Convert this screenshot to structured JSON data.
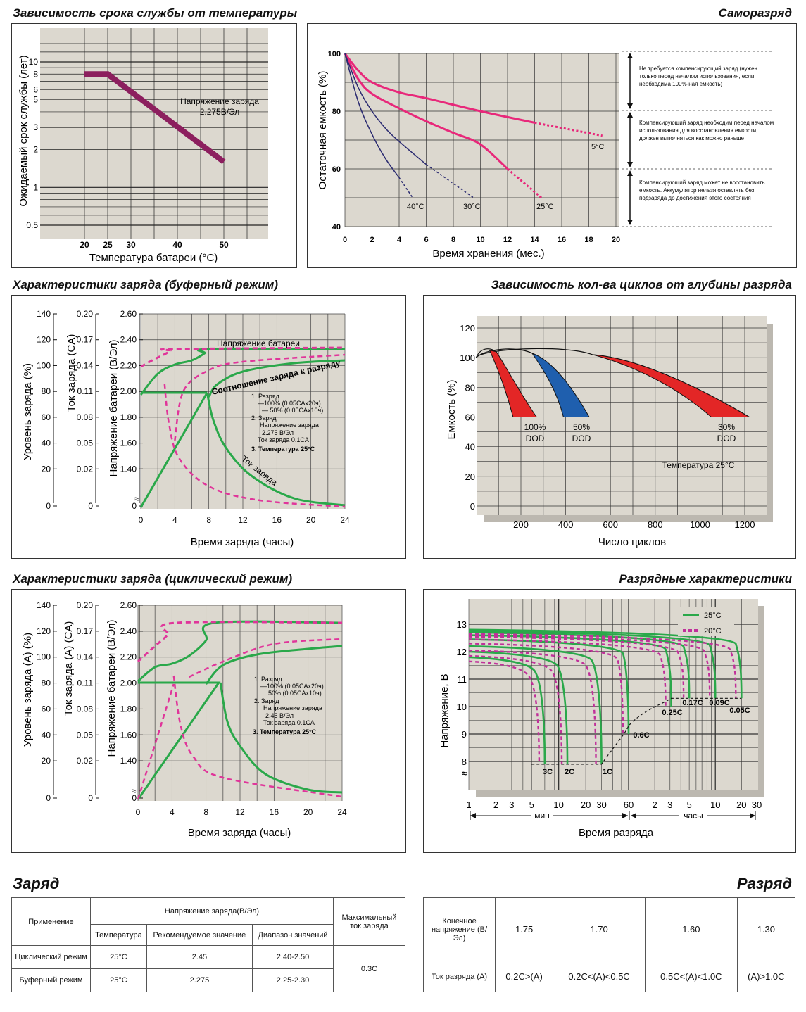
{
  "chart_data": [
    {
      "type": "line",
      "title": "Зависимость срока службы от температуры",
      "xlabel": "Температура батареи (°C)",
      "ylabel": "Ожидаемый срок службы (лет)",
      "xticks": [
        "20",
        "25",
        "30",
        "40",
        "50"
      ],
      "yticks": [
        "0.5",
        "1",
        "2",
        "3",
        "5",
        "6",
        "8",
        "10"
      ],
      "annotation": [
        "Напряжение заряда",
        "2.275В/Эл"
      ],
      "series": [
        {
          "x": [
            20,
            25,
            50
          ],
          "y": [
            8,
            8,
            1.6
          ]
        }
      ],
      "colors": {
        "line": "#8c1f5e",
        "plot": "#dcd8cf"
      }
    },
    {
      "type": "line",
      "title": "Саморазряд",
      "xlabel": "Время хранения (мес.)",
      "ylabel": "Остаточная емкость (%)",
      "xticks": [
        "0",
        "2",
        "4",
        "6",
        "8",
        "10",
        "12",
        "14",
        "16",
        "18",
        "20"
      ],
      "yticks": [
        "40",
        "60",
        "80",
        "100"
      ],
      "series": [
        {
          "name": "5°C",
          "x": [
            0,
            1,
            2,
            4,
            6,
            10,
            14,
            19
          ],
          "y": [
            100,
            94,
            90,
            86.5,
            84.5,
            80,
            76,
            71.5
          ]
        },
        {
          "name": "25°C",
          "x": [
            0,
            1,
            2,
            4,
            6,
            8,
            10,
            12,
            14.5
          ],
          "y": [
            100,
            91,
            86,
            81,
            76.5,
            72.5,
            68.5,
            60,
            50
          ]
        },
        {
          "name": "30°C",
          "x": [
            0,
            1,
            2,
            3,
            4,
            6,
            9.5
          ],
          "y": [
            100,
            88,
            80,
            74,
            69.5,
            61.5,
            50
          ]
        },
        {
          "name": "40°C",
          "x": [
            0,
            1,
            2,
            3,
            4,
            5
          ],
          "y": [
            100,
            83,
            72,
            63.5,
            57,
            50
          ]
        }
      ],
      "notes": [
        "Не требуется компенсирующий заряд (нужен только перед началом использования, если необходима 100%-ная емкость)",
        "Компенсирующий заряд необходим перед началом использования для восстановления емкости, должен выполняться как можно раньше",
        "Компенсирующий заряд может не восстановить емкость. Аккумулятор нельзя оставлять без подзаряда до достижения этого состояния"
      ],
      "colors": {
        "line": "#e8287a",
        "dark": "#2a2a70",
        "plot": "#dcd8cf"
      }
    },
    {
      "type": "line",
      "title": "Характеристики  заряда (буферный режим)",
      "xlabel": "Время заряда (часы)",
      "ylabel_left1": "Уровень заряда (%)",
      "ylabel_left2": "Ток заряда (CA)",
      "ylabel_left3": "Напряжение батареи (В/Эл)",
      "axis1": [
        "140",
        "120",
        "100",
        "80",
        "60",
        "40",
        "20",
        "0"
      ],
      "axis2": [
        "0.20",
        "0.17",
        "0.14",
        "0.11",
        "0.08",
        "0.05",
        "0.02",
        "0"
      ],
      "axis3": [
        "2.60",
        "2.40",
        "2.20",
        "2.00",
        "1.80",
        "1.60",
        "1.40",
        "0"
      ],
      "xticks": [
        "0",
        "4",
        "8",
        "12",
        "16",
        "20",
        "24"
      ],
      "labels": [
        "Напряжение батареи",
        "Соотношение заряда к разряду",
        "Ток заряда"
      ],
      "legend": [
        "1. Разряд",
        "—100% (0.05CAx20ч)",
        "— 50% (0.05CAx10ч)",
        "2. Заряд",
        "Напряжение заряда",
        "2.275 В/Эл",
        "Ток заряда 0.1CA",
        "3. Температура 25°C"
      ],
      "colors": {
        "solid": "#2aa84a",
        "dashed": "#e0359a",
        "plot": "#dcd8cf"
      }
    },
    {
      "type": "area",
      "title": "Зависимость кол-ва циклов от глубины разряда",
      "xlabel": "Число циклов",
      "ylabel": "Емкость (%)",
      "xticks": [
        "200",
        "400",
        "600",
        "800",
        "1000",
        "1200"
      ],
      "yticks": [
        "0",
        "20",
        "40",
        "60",
        "80",
        "100",
        "120"
      ],
      "series": [
        {
          "name": "100%",
          "lines": [
            "100%",
            "DOD"
          ],
          "color": "#e32626"
        },
        {
          "name": "50%",
          "lines": [
            "50%",
            "DOD"
          ],
          "color": "#1f5fae"
        },
        {
          "name": "30%",
          "lines": [
            "30%",
            "DOD"
          ],
          "color": "#e32626"
        }
      ],
      "annotation": "Температура 25°C",
      "colors": {
        "plot": "#dcd8cf"
      }
    },
    {
      "type": "line",
      "title": "Характеристики  заряда (циклический режим)",
      "xlabel": "Время заряда (часы)",
      "ylabel_left1": "Уровень заряда (A) (%)",
      "ylabel_left2": "Ток заряда (А) (CA)",
      "ylabel_left3": "Напряжение батареи (В/Эл)",
      "axis1": [
        "140",
        "120",
        "100",
        "80",
        "60",
        "40",
        "20",
        "0"
      ],
      "axis2": [
        "0.20",
        "0.17",
        "0.14",
        "0.11",
        "0.08",
        "0.05",
        "0.02",
        "0"
      ],
      "axis3": [
        "2.60",
        "2.40",
        "2.20",
        "2.00",
        "1.80",
        "1.60",
        "1.40",
        "0"
      ],
      "xticks": [
        "0",
        "4",
        "8",
        "12",
        "16",
        "20",
        "24"
      ],
      "legend": [
        "1. Разряд",
        "—100% (0.05CAx20ч)",
        "50% (0.05CAx10ч)",
        "2. Заряд",
        "Напряжение заряда",
        "2.45 В/Эл",
        "Ток заряда 0.1CA",
        "3. Температура 25°C"
      ],
      "colors": {
        "solid": "#2aa84a",
        "dashed": "#e0359a",
        "plot": "#dcd8cf"
      }
    },
    {
      "type": "line",
      "title": "Разрядные характеристики",
      "xlabel": "Время разряда",
      "ylabel": "Напряжение, В",
      "yticks": [
        "8",
        "9",
        "10",
        "11",
        "12",
        "13"
      ],
      "xticks_min": [
        "1",
        "2",
        "3",
        "5",
        "10",
        "20",
        "30",
        "60"
      ],
      "xticks_h": [
        "2",
        "3",
        "5",
        "10",
        "20",
        "30"
      ],
      "unit_min": "мин",
      "unit_h": "часы",
      "legend": [
        "25°C",
        "20°C"
      ],
      "rates": [
        "3C",
        "2C",
        "1C",
        "0.6C",
        "0.25C",
        "0.17C",
        "0.09C",
        "0.05C"
      ],
      "colors": {
        "solid": "#2aa84a",
        "dashed": "#c0309a",
        "plot": "#dcd8cf"
      }
    }
  ],
  "charge_table": {
    "heading": "Заряд",
    "col_application": "Применение",
    "col_voltage": "Напряжение заряда(В/Эл)",
    "col_temp": "Температура",
    "col_rec": "Рекомендуемое значение",
    "col_range": "Диапазон значений",
    "col_max": "Максимальный ток заряда",
    "rows": [
      {
        "name": "Циклический режим",
        "temp": "25°C",
        "rec": "2.45",
        "range": "2.40-2.50"
      },
      {
        "name": "Буферный режим",
        "temp": "25°C",
        "rec": "2.275",
        "range": "2.25-2.30"
      }
    ],
    "max_current": "0.3C"
  },
  "discharge_table": {
    "heading": "Разряд",
    "row1_label": "Конечное напряжение (В/Эл)",
    "row1": [
      "1.75",
      "1.70",
      "1.60",
      "1.30"
    ],
    "row2_label": "Ток разряда (А)",
    "row2": [
      "0.2C>(A)",
      "0.2C<(A)<0.5C",
      "0.5C<(A)<1.0C",
      "(A)>1.0C"
    ]
  }
}
